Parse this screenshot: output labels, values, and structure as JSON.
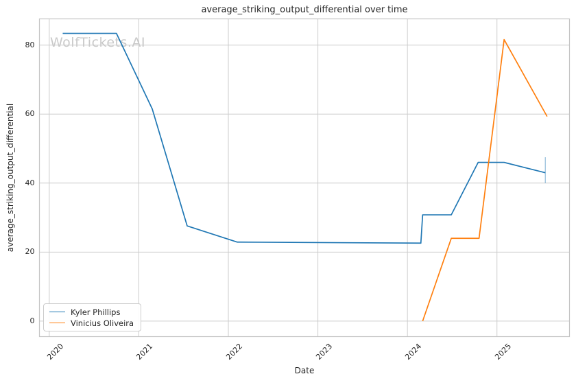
{
  "watermark": {
    "text": "WolfTickets.AI"
  },
  "chart_data": {
    "type": "line",
    "title": "average_striking_output_differential over time",
    "xlabel": "Date",
    "ylabel": "average_striking_output_differential",
    "xlim": [
      2019.89,
      2025.81
    ],
    "ylim": [
      -4.5,
      87.6
    ],
    "xticks": [
      2020,
      2021,
      2022,
      2023,
      2024,
      2025
    ],
    "yticks": [
      0,
      20,
      40,
      60,
      80
    ],
    "grid": true,
    "legend_position": "lower left",
    "series": [
      {
        "name": "Kyler Phillips",
        "color": "#1f77b4",
        "x": [
          2020.15,
          2020.75,
          2021.15,
          2021.54,
          2022.1,
          2024.15,
          2024.17,
          2024.49,
          2024.79,
          2025.08,
          2025.54
        ],
        "y": [
          83.4,
          83.4,
          61.5,
          27.6,
          22.9,
          22.6,
          30.8,
          30.8,
          46.0,
          46.0,
          43.0
        ],
        "error_bar": {
          "x": 2025.54,
          "y_low": 40.0,
          "y_high": 47.5
        }
      },
      {
        "name": "Vinicius Oliveira",
        "color": "#ff7f0e",
        "x": [
          2024.17,
          2024.49,
          2024.8,
          2025.08,
          2025.56
        ],
        "y": [
          0.0,
          24.0,
          24.0,
          81.6,
          59.3
        ]
      }
    ]
  }
}
